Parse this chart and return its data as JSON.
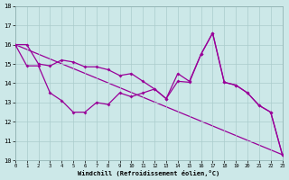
{
  "xlabel": "Windchill (Refroidissement éolien,°C)",
  "bg_color": "#cce8e8",
  "line_color": "#990099",
  "ylim": [
    10,
    18
  ],
  "xlim": [
    0,
    23
  ],
  "yticks": [
    10,
    11,
    12,
    13,
    14,
    15,
    16,
    17,
    18
  ],
  "xticks": [
    0,
    1,
    2,
    3,
    4,
    5,
    6,
    7,
    8,
    9,
    10,
    11,
    12,
    13,
    14,
    15,
    16,
    17,
    18,
    19,
    20,
    21,
    22,
    23
  ],
  "line1_x": [
    0,
    1,
    2,
    3,
    4,
    5,
    6,
    7,
    8,
    9,
    10,
    11,
    12,
    13,
    14,
    15,
    16,
    17,
    18,
    19,
    20,
    21,
    22,
    23
  ],
  "line1_y": [
    16.0,
    16.0,
    15.0,
    14.9,
    15.2,
    15.1,
    14.85,
    14.85,
    14.7,
    14.4,
    14.5,
    14.1,
    13.7,
    13.2,
    14.5,
    14.1,
    15.5,
    16.6,
    14.05,
    13.9,
    13.5,
    12.85,
    12.5,
    10.3
  ],
  "line2_x": [
    0,
    1,
    2,
    3,
    4,
    5,
    6,
    7,
    8,
    9,
    10,
    11,
    12,
    13,
    14,
    15,
    16,
    17,
    18,
    19,
    20,
    21,
    22,
    23
  ],
  "line2_y": [
    16.0,
    14.9,
    14.9,
    13.5,
    13.1,
    12.5,
    12.5,
    13.0,
    12.9,
    13.5,
    13.3,
    13.5,
    13.7,
    13.2,
    14.1,
    14.05,
    15.5,
    16.6,
    14.05,
    13.9,
    13.5,
    12.85,
    12.5,
    10.3
  ],
  "line3_x": [
    0,
    23
  ],
  "line3_y": [
    16.0,
    10.3
  ]
}
